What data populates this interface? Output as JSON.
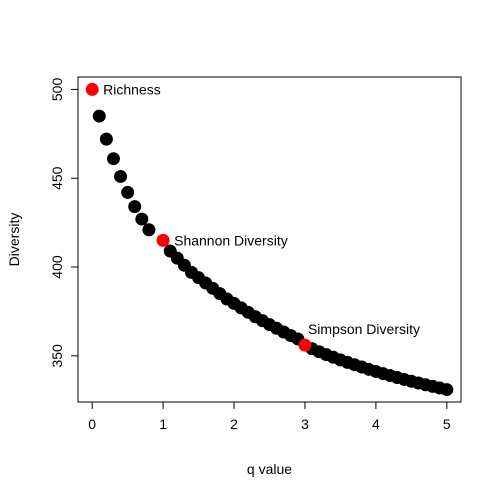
{
  "chart_data": {
    "type": "scatter",
    "title": "",
    "xlabel": "q value",
    "ylabel": "Diversity",
    "xlim": [
      -0.2,
      5.2
    ],
    "ylim": [
      324,
      507
    ],
    "x_ticks": [
      0,
      1,
      2,
      3,
      4,
      5
    ],
    "y_ticks": [
      350,
      400,
      450,
      500
    ],
    "grid": false,
    "series": [
      {
        "color": "#000000",
        "points": [
          {
            "x": 0.1,
            "y": 485
          },
          {
            "x": 0.2,
            "y": 472
          },
          {
            "x": 0.3,
            "y": 461
          },
          {
            "x": 0.4,
            "y": 451
          },
          {
            "x": 0.5,
            "y": 442
          },
          {
            "x": 0.6,
            "y": 434
          },
          {
            "x": 0.7,
            "y": 427
          },
          {
            "x": 0.8,
            "y": 421
          },
          {
            "x": 1.1,
            "y": 409
          },
          {
            "x": 1.2,
            "y": 405
          },
          {
            "x": 1.3,
            "y": 401
          },
          {
            "x": 1.4,
            "y": 397
          },
          {
            "x": 1.5,
            "y": 394
          },
          {
            "x": 1.6,
            "y": 391
          },
          {
            "x": 1.7,
            "y": 388
          },
          {
            "x": 1.8,
            "y": 385
          },
          {
            "x": 1.9,
            "y": 382
          },
          {
            "x": 2.0,
            "y": 379.5
          },
          {
            "x": 2.1,
            "y": 377
          },
          {
            "x": 2.2,
            "y": 374.5
          },
          {
            "x": 2.3,
            "y": 372
          },
          {
            "x": 2.4,
            "y": 369.8
          },
          {
            "x": 2.5,
            "y": 367.6
          },
          {
            "x": 2.6,
            "y": 365.5
          },
          {
            "x": 2.7,
            "y": 363.4
          },
          {
            "x": 2.8,
            "y": 361.4
          },
          {
            "x": 2.9,
            "y": 359.5
          },
          {
            "x": 3.1,
            "y": 354
          },
          {
            "x": 3.2,
            "y": 352.3
          },
          {
            "x": 3.3,
            "y": 350.7
          },
          {
            "x": 3.4,
            "y": 349.2
          },
          {
            "x": 3.5,
            "y": 347.7
          },
          {
            "x": 3.6,
            "y": 346.3
          },
          {
            "x": 3.7,
            "y": 345
          },
          {
            "x": 3.8,
            "y": 343.7
          },
          {
            "x": 3.9,
            "y": 342.4
          },
          {
            "x": 4.0,
            "y": 341.2
          },
          {
            "x": 4.1,
            "y": 340
          },
          {
            "x": 4.2,
            "y": 338.9
          },
          {
            "x": 4.3,
            "y": 337.8
          },
          {
            "x": 4.4,
            "y": 336.7
          },
          {
            "x": 4.5,
            "y": 335.7
          },
          {
            "x": 4.6,
            "y": 334.7
          },
          {
            "x": 4.7,
            "y": 333.7
          },
          {
            "x": 4.8,
            "y": 332.8
          },
          {
            "x": 4.9,
            "y": 331.9
          },
          {
            "x": 5.0,
            "y": 331
          }
        ]
      },
      {
        "color": "#ff0000",
        "points": [
          {
            "x": 0,
            "y": 500,
            "label": "Richness"
          },
          {
            "x": 1,
            "y": 415,
            "label": "Shannon Diversity"
          },
          {
            "x": 3,
            "y": 356,
            "label": "Simpson Diversity"
          }
        ]
      }
    ]
  }
}
